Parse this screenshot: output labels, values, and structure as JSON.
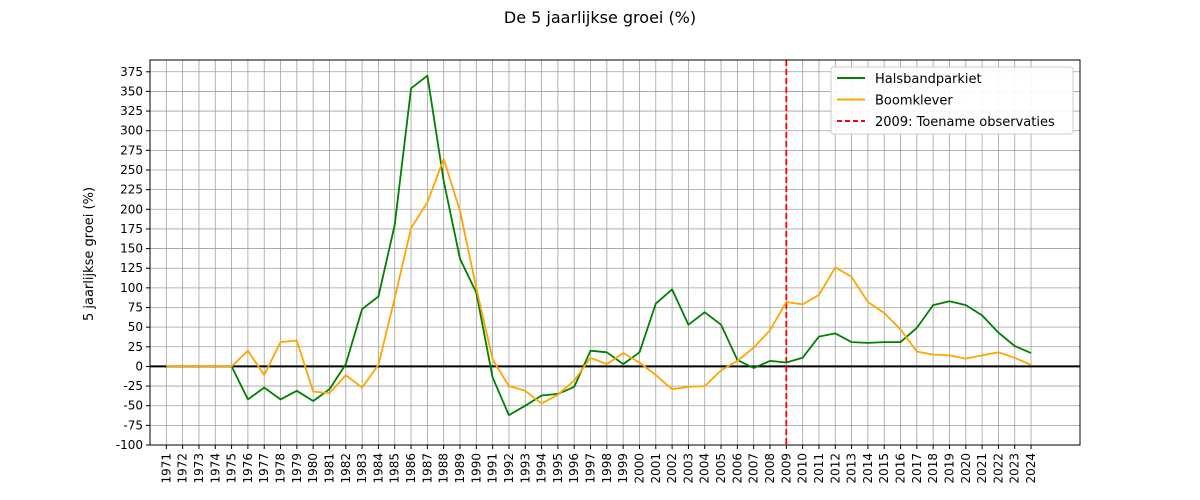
{
  "chart_data": {
    "type": "line",
    "title": "De 5 jaarlijkse groei (%)",
    "xlabel": "",
    "ylabel": "5 jaarlijkse groei (%)",
    "x": [
      1971,
      1972,
      1973,
      1974,
      1975,
      1976,
      1977,
      1978,
      1979,
      1980,
      1981,
      1982,
      1983,
      1984,
      1985,
      1986,
      1987,
      1988,
      1989,
      1990,
      1991,
      1992,
      1993,
      1994,
      1995,
      1996,
      1997,
      1998,
      1999,
      2000,
      2001,
      2002,
      2003,
      2004,
      2005,
      2006,
      2007,
      2008,
      2009,
      2010,
      2011,
      2012,
      2013,
      2014,
      2015,
      2016,
      2017,
      2018,
      2019,
      2020,
      2021,
      2022,
      2023,
      2024
    ],
    "xlim": [
      1970,
      2027
    ],
    "ylim": [
      -100,
      390
    ],
    "yticks": [
      -100,
      -75,
      -50,
      -25,
      0,
      25,
      50,
      75,
      100,
      125,
      150,
      175,
      200,
      225,
      250,
      275,
      300,
      325,
      350,
      375
    ],
    "grid": true,
    "legend_position": "top-right",
    "series": [
      {
        "name": "Halsbandparkiet",
        "color": "#008000",
        "values": [
          0,
          0,
          0,
          0,
          0,
          -42,
          -27,
          -42,
          -31,
          -44,
          -29,
          3,
          73,
          89,
          180,
          354,
          370,
          236,
          137,
          94,
          -14,
          -62,
          -50,
          -37,
          -35,
          -26,
          20,
          18,
          3,
          18,
          80,
          98,
          53,
          69,
          53,
          8,
          -2,
          7,
          5,
          11,
          38,
          42,
          31,
          30,
          31,
          31,
          49,
          78,
          83,
          78,
          65,
          43,
          26,
          17
        ]
      },
      {
        "name": "Boomklever",
        "color": "#FFA500",
        "values": [
          0,
          0,
          0,
          0,
          0,
          20,
          -11,
          31,
          33,
          -32,
          -34,
          -11,
          -27,
          2,
          87,
          176,
          209,
          264,
          198,
          100,
          9,
          -25,
          -31,
          -47,
          -36,
          -18,
          11,
          3,
          17,
          5,
          -11,
          -29,
          -26,
          -25,
          -5,
          7,
          24,
          46,
          82,
          79,
          91,
          126,
          114,
          82,
          68,
          47,
          19,
          15,
          14,
          10,
          14,
          18,
          11,
          2
        ]
      }
    ],
    "vertical_lines": [
      {
        "x": 2009,
        "label": "2009: Toename observaties",
        "color": "#FF0000",
        "style": "dashed"
      }
    ],
    "horizontal_lines": [
      {
        "y": 0,
        "color": "#000000"
      }
    ]
  }
}
